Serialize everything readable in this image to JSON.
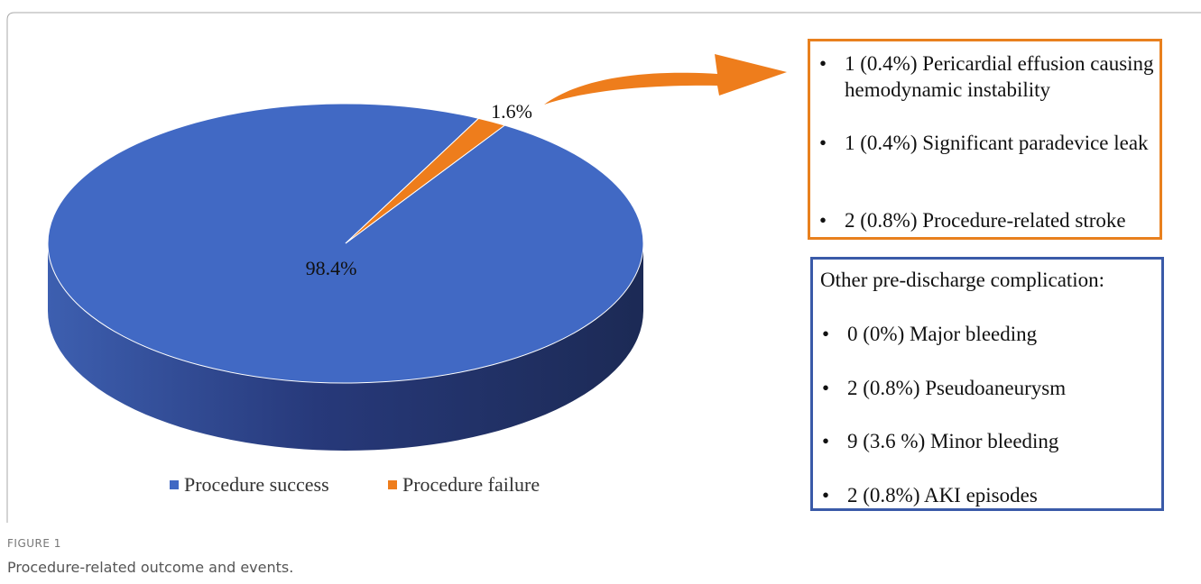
{
  "chart_data": {
    "type": "pie",
    "categories": [
      "Procedure success",
      "Procedure failure"
    ],
    "values": [
      98.4,
      1.6
    ],
    "value_labels": [
      "98.4%",
      "1.6%"
    ],
    "colors": [
      "#4169c4",
      "#ee7d1c"
    ],
    "legend": "bottom",
    "annotations": [
      {
        "items": [
          "1 (0.4%) Pericardial effusion causing hemodynamic instability",
          "1 (0.4%) Significant paradevice leak",
          "2 (0.8%) Procedure-related stroke"
        ]
      },
      {
        "title": "Other pre-discharge complication:",
        "items": [
          "0 (0%) Major bleeding",
          "2 (0.8%) Pseudoaneurysm",
          "9 (3.6 %) Minor bleeding",
          "2 (0.8%) AKI episodes"
        ]
      }
    ]
  },
  "figure": {
    "label": "FIGURE 1",
    "caption": "Procedure-related outcome and events."
  }
}
